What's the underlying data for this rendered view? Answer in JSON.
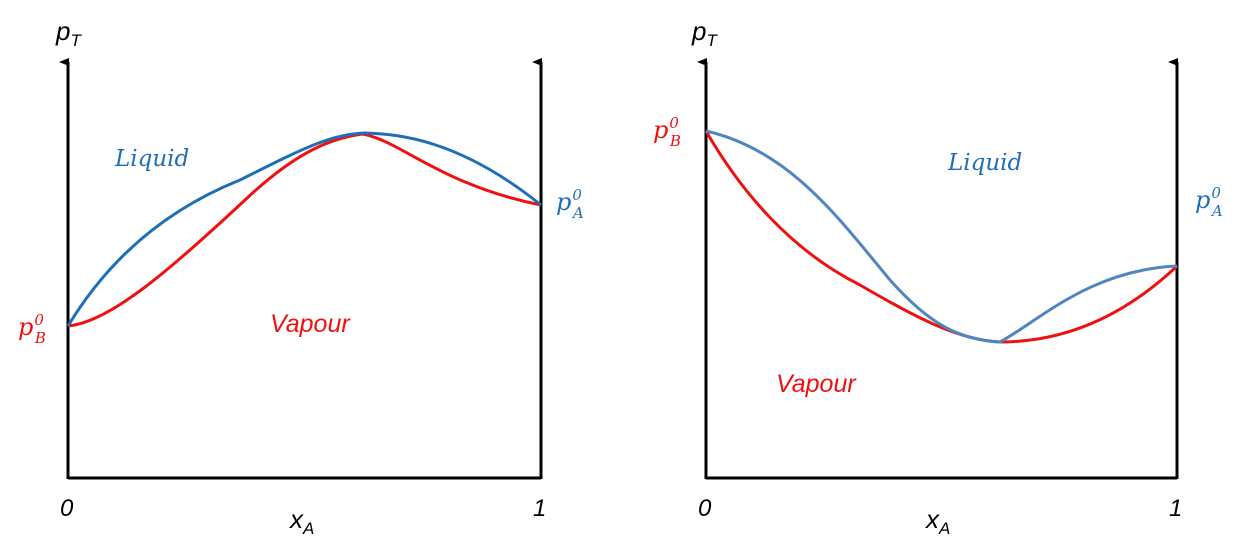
{
  "colors": {
    "liquid": "#1f6fb8",
    "liquid_right": "#4f86c0",
    "vapour": "#ee1111",
    "axis": "#000000"
  },
  "left": {
    "y_label": "p",
    "y_label_sub": "T",
    "x_label": "x",
    "x_label_sub": "A",
    "tick_0": "0",
    "tick_1": "1",
    "liquid_label": "Liquid",
    "vapour_label": "Vapour",
    "pB_base": "p",
    "pB_sub": "B",
    "pB_sup": "0",
    "pA_base": "p",
    "pA_sub": "A",
    "pA_sup": "0"
  },
  "right": {
    "y_label": "p",
    "y_label_sub": "T",
    "x_label": "x",
    "x_label_sub": "A",
    "tick_0": "0",
    "tick_1": "1",
    "liquid_label": "Liquid",
    "vapour_label": "Vapour",
    "pB_base": "p",
    "pB_sub": "B",
    "pB_sup": "0",
    "pA_base": "p",
    "pA_sub": "A",
    "pA_sup": "0"
  }
}
